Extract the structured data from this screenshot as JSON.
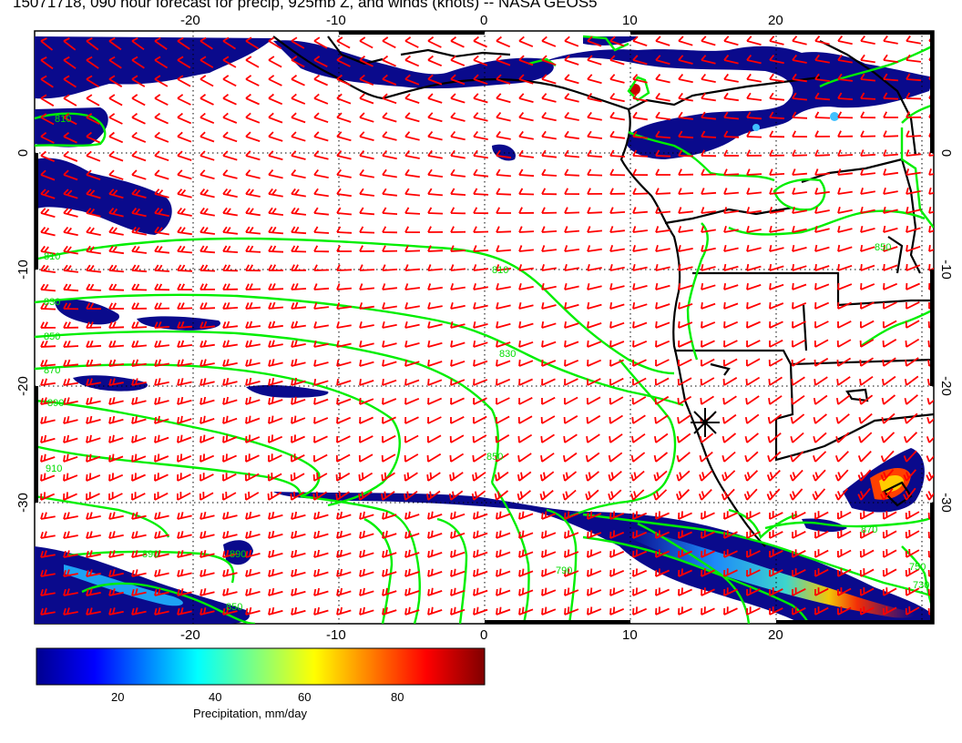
{
  "title": "15071718, 090 hour forecast for precip, 925mb Z, and winds (knots) -- NASA GEOS5",
  "map": {
    "lon_labels": [
      "-20",
      "-10",
      "0",
      "10",
      "20"
    ],
    "lat_labels": [
      "0",
      "-10",
      "-20",
      "-30"
    ],
    "contour_labels": [
      "810",
      "830",
      "850",
      "870",
      "890",
      "910",
      "830",
      "850",
      "810",
      "890",
      "890",
      "850",
      "790",
      "750",
      "730",
      "810",
      "850",
      "870"
    ],
    "colors": {
      "precip_low": "#0a0a8c",
      "contour": "#00ee00",
      "barb": "#ff0000",
      "coast": "#000000"
    },
    "marker": "asterisk-icon"
  },
  "colorbar": {
    "ticks": [
      "20",
      "40",
      "60",
      "80"
    ],
    "label": "Precipitation, mm/day",
    "range": [
      0,
      100
    ]
  }
}
